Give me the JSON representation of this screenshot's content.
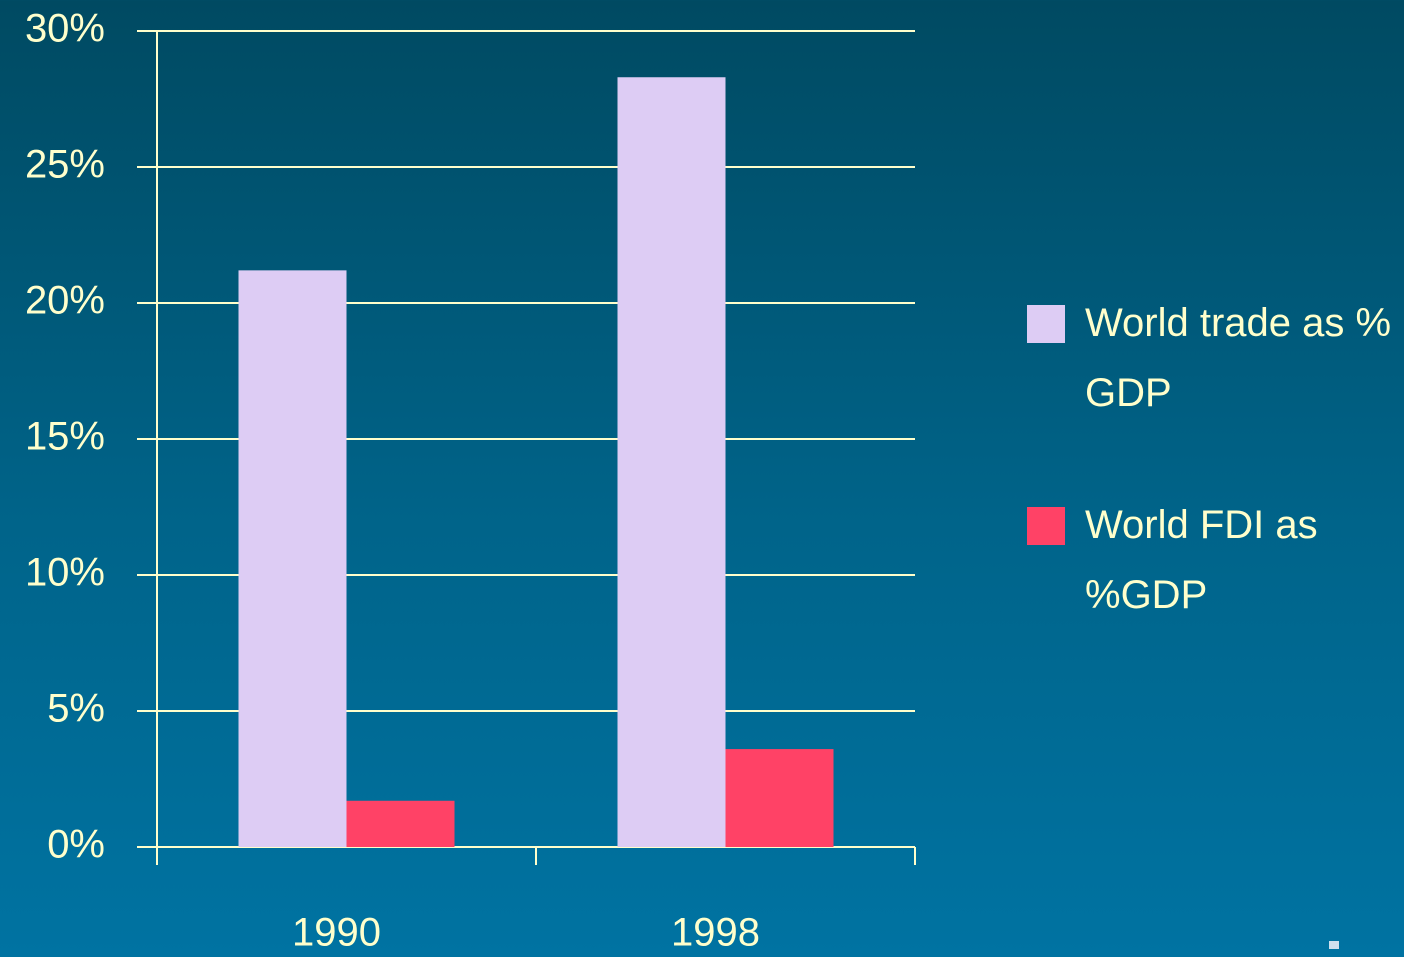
{
  "chart_data": {
    "type": "bar",
    "categories": [
      "1990",
      "1998"
    ],
    "series": [
      {
        "name": "World trade as % GDP",
        "color": "#ddccf4",
        "values": [
          21.2,
          28.3
        ]
      },
      {
        "name": "World FDI as %GDP",
        "color": "#ff4266",
        "values": [
          1.7,
          3.6
        ]
      }
    ],
    "ylim": [
      0,
      30
    ],
    "yticks": [
      {
        "value": 0,
        "label": "0%"
      },
      {
        "value": 5,
        "label": "5%"
      },
      {
        "value": 10,
        "label": "10%"
      },
      {
        "value": 15,
        "label": "15%"
      },
      {
        "value": 20,
        "label": "20%"
      },
      {
        "value": 25,
        "label": "25%"
      },
      {
        "value": 30,
        "label": "30%"
      }
    ],
    "grid": true,
    "legend": "right"
  }
}
